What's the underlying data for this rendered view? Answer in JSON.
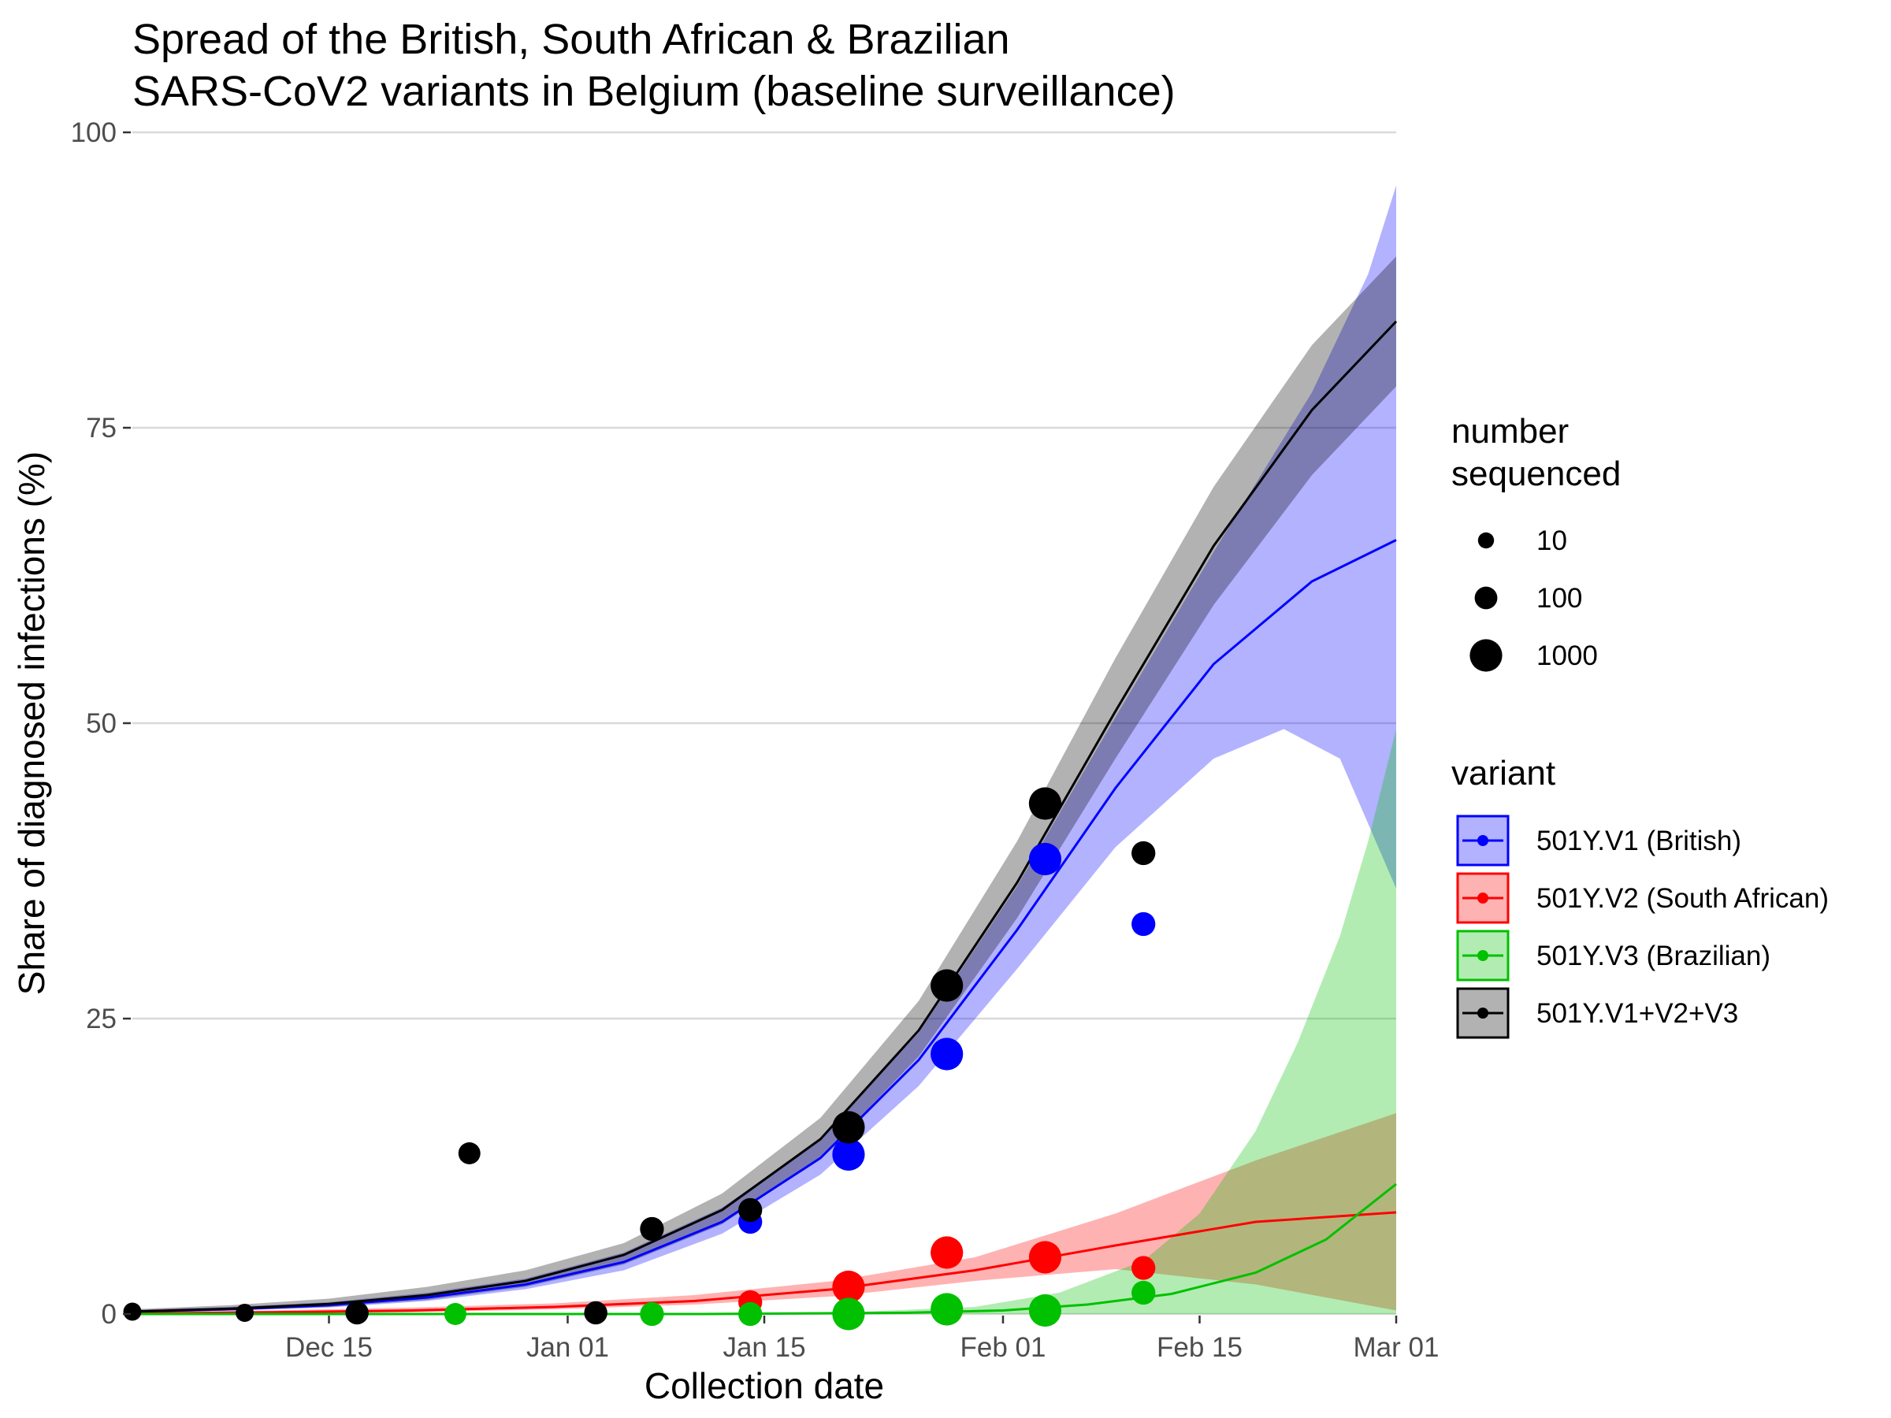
{
  "chart_data": {
    "type": "scatter",
    "title_lines": [
      "Spread of the British, South African & Brazilian",
      "SARS-CoV2 variants in Belgium (baseline surveillance)"
    ],
    "xlabel": "Collection date",
    "ylabel": "Share of diagnosed infections (%)",
    "x_start": "2020-12-01",
    "xlim": [
      "2020-12-01",
      "2021-03-01"
    ],
    "ylim": [
      0,
      100
    ],
    "grid": "horizontal",
    "x_ticks": [
      {
        "date": "2020-12-15",
        "label": "Dec 15"
      },
      {
        "date": "2021-01-01",
        "label": "Jan 01"
      },
      {
        "date": "2021-01-15",
        "label": "Jan 15"
      },
      {
        "date": "2021-02-01",
        "label": "Feb 01"
      },
      {
        "date": "2021-02-15",
        "label": "Feb 15"
      },
      {
        "date": "2021-03-01",
        "label": "Mar 01"
      }
    ],
    "y_ticks": [
      {
        "value": 0,
        "label": "0"
      },
      {
        "value": 25,
        "label": "25"
      },
      {
        "value": 50,
        "label": "50"
      },
      {
        "value": 75,
        "label": "75"
      },
      {
        "value": 100,
        "label": "100"
      }
    ],
    "size_legend": {
      "title_lines": [
        "number",
        "sequenced"
      ],
      "items": [
        {
          "value": 10,
          "label": "10"
        },
        {
          "value": 100,
          "label": "100"
        },
        {
          "value": 1000,
          "label": "1000"
        }
      ]
    },
    "color_legend": {
      "title": "variant",
      "placement": "right"
    },
    "series": [
      {
        "name": "501Y.V1 (British)",
        "color": "#0000ff",
        "fill": "#0000ff",
        "fill_opacity": 0.3,
        "fit": [
          {
            "d": 0,
            "y": 0.2
          },
          {
            "d": 7,
            "y": 0.4
          },
          {
            "d": 14,
            "y": 0.75
          },
          {
            "d": 21,
            "y": 1.4
          },
          {
            "d": 28,
            "y": 2.5
          },
          {
            "d": 35,
            "y": 4.4
          },
          {
            "d": 42,
            "y": 7.8
          },
          {
            "d": 49,
            "y": 13.2
          },
          {
            "d": 56,
            "y": 21.5
          },
          {
            "d": 63,
            "y": 32.5
          },
          {
            "d": 70,
            "y": 44.5
          },
          {
            "d": 77,
            "y": 55
          },
          {
            "d": 84,
            "y": 62
          },
          {
            "d": 90,
            "y": 65.5
          }
        ],
        "lower": [
          {
            "d": 0,
            "y": 0.1
          },
          {
            "d": 7,
            "y": 0.3
          },
          {
            "d": 14,
            "y": 0.55
          },
          {
            "d": 21,
            "y": 1.1
          },
          {
            "d": 28,
            "y": 2.1
          },
          {
            "d": 35,
            "y": 3.7
          },
          {
            "d": 42,
            "y": 6.8
          },
          {
            "d": 49,
            "y": 11.8
          },
          {
            "d": 56,
            "y": 19.3
          },
          {
            "d": 63,
            "y": 29.2
          },
          {
            "d": 70,
            "y": 39.5
          },
          {
            "d": 77,
            "y": 47
          },
          {
            "d": 82,
            "y": 49.5
          },
          {
            "d": 86,
            "y": 47
          },
          {
            "d": 90,
            "y": 36
          }
        ],
        "upper": [
          {
            "d": 0,
            "y": 0.35
          },
          {
            "d": 7,
            "y": 0.6
          },
          {
            "d": 14,
            "y": 1.0
          },
          {
            "d": 21,
            "y": 1.8
          },
          {
            "d": 28,
            "y": 3.0
          },
          {
            "d": 35,
            "y": 5.2
          },
          {
            "d": 42,
            "y": 9.0
          },
          {
            "d": 49,
            "y": 14.8
          },
          {
            "d": 56,
            "y": 23.8
          },
          {
            "d": 63,
            "y": 36.2
          },
          {
            "d": 70,
            "y": 50.5
          },
          {
            "d": 77,
            "y": 64.5
          },
          {
            "d": 84,
            "y": 78
          },
          {
            "d": 88,
            "y": 88
          },
          {
            "d": 90,
            "y": 95.5
          }
        ],
        "points": [
          {
            "d": 44,
            "y": 7.8,
            "n": 150
          },
          {
            "d": 51,
            "y": 13.5,
            "n": 1000
          },
          {
            "d": 58,
            "y": 22,
            "n": 1000
          },
          {
            "d": 65,
            "y": 38.5,
            "n": 1000
          },
          {
            "d": 72,
            "y": 33,
            "n": 150
          }
        ]
      },
      {
        "name": "501Y.V2 (South African)",
        "color": "#ff0000",
        "fill": "#ff0000",
        "fill_opacity": 0.3,
        "fit": [
          {
            "d": 0,
            "y": 0.05
          },
          {
            "d": 10,
            "y": 0.15
          },
          {
            "d": 20,
            "y": 0.3
          },
          {
            "d": 30,
            "y": 0.6
          },
          {
            "d": 40,
            "y": 1.1
          },
          {
            "d": 50,
            "y": 2.1
          },
          {
            "d": 60,
            "y": 3.7
          },
          {
            "d": 70,
            "y": 5.8
          },
          {
            "d": 80,
            "y": 7.8
          },
          {
            "d": 90,
            "y": 8.6
          }
        ],
        "lower": [
          {
            "d": 0,
            "y": 0
          },
          {
            "d": 10,
            "y": 0.05
          },
          {
            "d": 20,
            "y": 0.15
          },
          {
            "d": 30,
            "y": 0.4
          },
          {
            "d": 40,
            "y": 0.8
          },
          {
            "d": 50,
            "y": 1.5
          },
          {
            "d": 60,
            "y": 2.8
          },
          {
            "d": 70,
            "y": 3.8
          },
          {
            "d": 80,
            "y": 2.5
          },
          {
            "d": 90,
            "y": 0.3
          }
        ],
        "upper": [
          {
            "d": 0,
            "y": 0.15
          },
          {
            "d": 10,
            "y": 0.3
          },
          {
            "d": 20,
            "y": 0.55
          },
          {
            "d": 30,
            "y": 0.9
          },
          {
            "d": 40,
            "y": 1.6
          },
          {
            "d": 50,
            "y": 2.8
          },
          {
            "d": 60,
            "y": 4.8
          },
          {
            "d": 70,
            "y": 8.5
          },
          {
            "d": 80,
            "y": 13
          },
          {
            "d": 90,
            "y": 17
          }
        ],
        "points": [
          {
            "d": 44,
            "y": 1,
            "n": 150
          },
          {
            "d": 51,
            "y": 2.3,
            "n": 1000
          },
          {
            "d": 58,
            "y": 5.2,
            "n": 1000
          },
          {
            "d": 65,
            "y": 4.8,
            "n": 1000
          },
          {
            "d": 72,
            "y": 3.9,
            "n": 150
          }
        ]
      },
      {
        "name": "501Y.V3 (Brazilian)",
        "color": "#00c000",
        "fill": "#00c000",
        "fill_opacity": 0.3,
        "fit": [
          {
            "d": 0,
            "y": 0
          },
          {
            "d": 40,
            "y": 0
          },
          {
            "d": 55,
            "y": 0.1
          },
          {
            "d": 62,
            "y": 0.3
          },
          {
            "d": 68,
            "y": 0.8
          },
          {
            "d": 74,
            "y": 1.7
          },
          {
            "d": 80,
            "y": 3.5
          },
          {
            "d": 85,
            "y": 6.3
          },
          {
            "d": 90,
            "y": 11
          }
        ],
        "lower": [
          {
            "d": 0,
            "y": 0
          },
          {
            "d": 90,
            "y": 0
          }
        ],
        "upper": [
          {
            "d": 0,
            "y": 0
          },
          {
            "d": 50,
            "y": 0.1
          },
          {
            "d": 60,
            "y": 0.6
          },
          {
            "d": 66,
            "y": 1.8
          },
          {
            "d": 72,
            "y": 4.5
          },
          {
            "d": 76,
            "y": 8.5
          },
          {
            "d": 80,
            "y": 15.5
          },
          {
            "d": 83,
            "y": 23
          },
          {
            "d": 86,
            "y": 32
          },
          {
            "d": 88,
            "y": 40
          },
          {
            "d": 90,
            "y": 49.5
          }
        ],
        "points": [
          {
            "d": 23,
            "y": 0,
            "n": 80
          },
          {
            "d": 37,
            "y": 0,
            "n": 150
          },
          {
            "d": 44,
            "y": 0,
            "n": 150
          },
          {
            "d": 51,
            "y": 0,
            "n": 1000
          },
          {
            "d": 58,
            "y": 0.4,
            "n": 1000
          },
          {
            "d": 65,
            "y": 0.3,
            "n": 1000
          },
          {
            "d": 72,
            "y": 1.8,
            "n": 150
          }
        ]
      },
      {
        "name": "501Y.V1+V2+V3",
        "color": "#000000",
        "fill": "#000000",
        "fill_opacity": 0.3,
        "fit": [
          {
            "d": 0,
            "y": 0.2
          },
          {
            "d": 7,
            "y": 0.45
          },
          {
            "d": 14,
            "y": 0.85
          },
          {
            "d": 21,
            "y": 1.6
          },
          {
            "d": 28,
            "y": 2.8
          },
          {
            "d": 35,
            "y": 5.0
          },
          {
            "d": 42,
            "y": 8.8
          },
          {
            "d": 49,
            "y": 14.8
          },
          {
            "d": 56,
            "y": 24
          },
          {
            "d": 63,
            "y": 36.5
          },
          {
            "d": 70,
            "y": 51
          },
          {
            "d": 77,
            "y": 65
          },
          {
            "d": 84,
            "y": 76.5
          },
          {
            "d": 90,
            "y": 84
          }
        ],
        "lower": [
          {
            "d": 0,
            "y": 0.1
          },
          {
            "d": 7,
            "y": 0.3
          },
          {
            "d": 14,
            "y": 0.6
          },
          {
            "d": 21,
            "y": 1.2
          },
          {
            "d": 28,
            "y": 2.3
          },
          {
            "d": 35,
            "y": 4.2
          },
          {
            "d": 42,
            "y": 7.6
          },
          {
            "d": 49,
            "y": 13.2
          },
          {
            "d": 56,
            "y": 21.8
          },
          {
            "d": 63,
            "y": 33.5
          },
          {
            "d": 70,
            "y": 47
          },
          {
            "d": 77,
            "y": 60
          },
          {
            "d": 84,
            "y": 71
          },
          {
            "d": 90,
            "y": 78.5
          }
        ],
        "upper": [
          {
            "d": 0,
            "y": 0.4
          },
          {
            "d": 7,
            "y": 0.75
          },
          {
            "d": 14,
            "y": 1.3
          },
          {
            "d": 21,
            "y": 2.3
          },
          {
            "d": 28,
            "y": 3.7
          },
          {
            "d": 35,
            "y": 6.0
          },
          {
            "d": 42,
            "y": 10.2
          },
          {
            "d": 49,
            "y": 16.6
          },
          {
            "d": 56,
            "y": 26.5
          },
          {
            "d": 63,
            "y": 40
          },
          {
            "d": 70,
            "y": 55.5
          },
          {
            "d": 77,
            "y": 70
          },
          {
            "d": 84,
            "y": 82
          },
          {
            "d": 90,
            "y": 89.5
          }
        ],
        "points": [
          {
            "d": 0,
            "y": 0.2,
            "n": 20
          },
          {
            "d": 8,
            "y": 0.1,
            "n": 20
          },
          {
            "d": 16,
            "y": 0.1,
            "n": 120
          },
          {
            "d": 24,
            "y": 13.6,
            "n": 80
          },
          {
            "d": 33,
            "y": 0.1,
            "n": 120
          },
          {
            "d": 37,
            "y": 7.2,
            "n": 150
          },
          {
            "d": 44,
            "y": 8.8,
            "n": 150
          },
          {
            "d": 51,
            "y": 15.8,
            "n": 1000
          },
          {
            "d": 58,
            "y": 27.8,
            "n": 1000
          },
          {
            "d": 65,
            "y": 43.2,
            "n": 1000
          },
          {
            "d": 72,
            "y": 39,
            "n": 150
          }
        ]
      }
    ]
  }
}
